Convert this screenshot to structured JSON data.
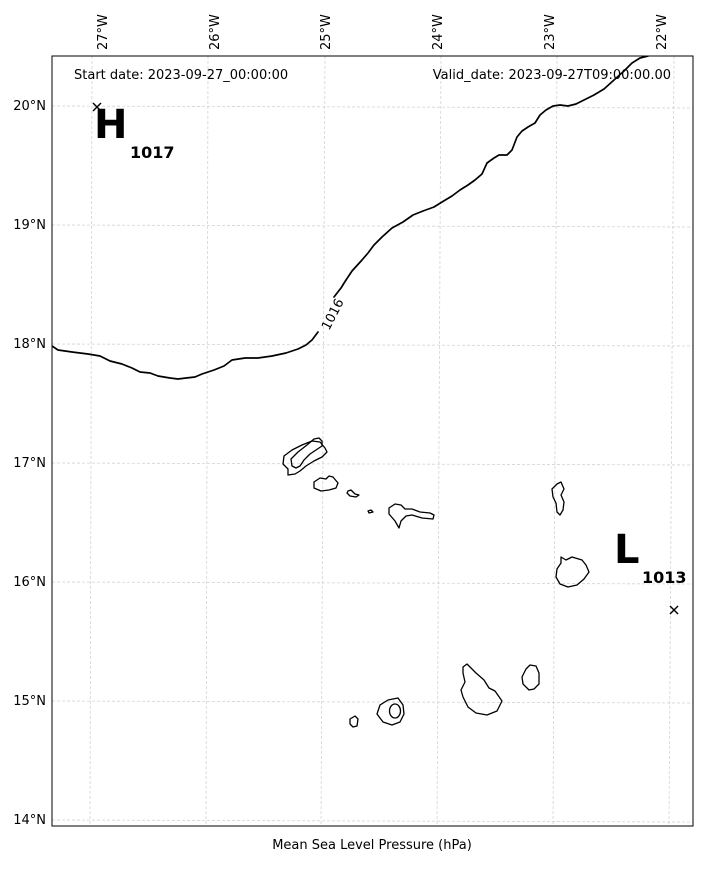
{
  "header": {
    "start_date": "Start date: 2023-09-27_00:00:00",
    "valid_date": "Valid_date: 2023-09-27T09:00:00.00"
  },
  "caption": "Mean Sea Level Pressure (hPa)",
  "longitude_ticks": [
    "27°W",
    "26°W",
    "25°W",
    "24°W",
    "23°W",
    "22°W"
  ],
  "latitude_ticks": [
    "20°N",
    "19°N",
    "18°N",
    "17°N",
    "16°N",
    "15°N",
    "14°N"
  ],
  "isobar": {
    "label": "1016"
  },
  "pressure_centers": [
    {
      "letter": "H",
      "value": "1017"
    },
    {
      "letter": "L",
      "value": "1013"
    }
  ]
}
